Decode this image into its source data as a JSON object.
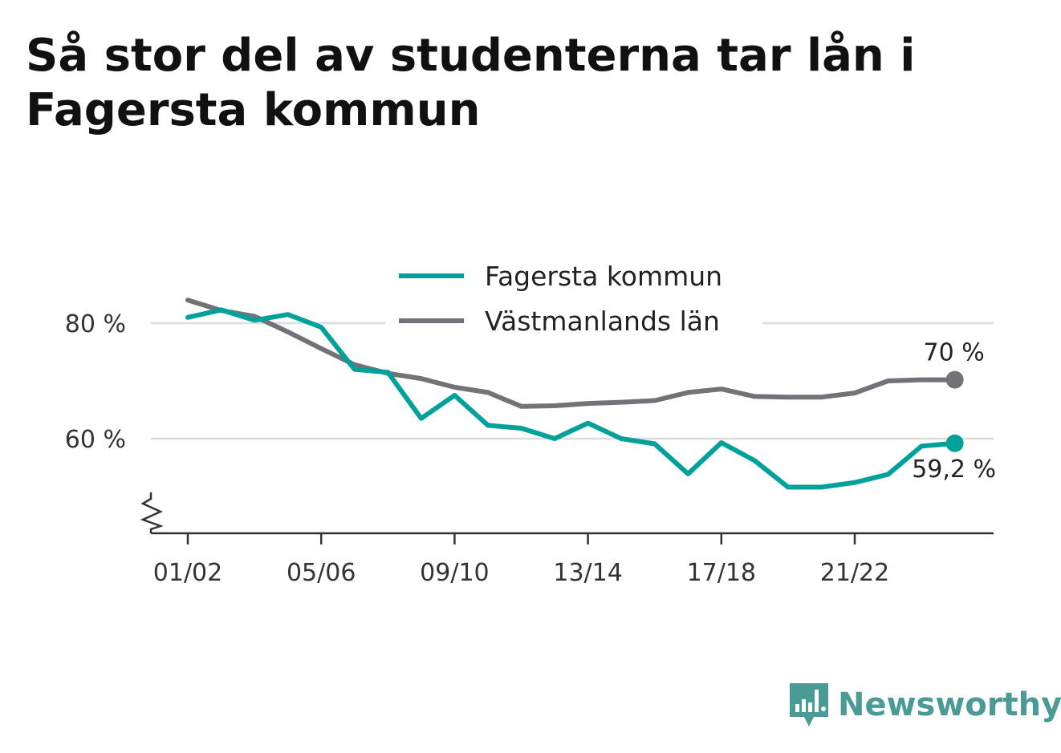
{
  "title": "Så stor del av studenterna tar lån i Fagersta kommun",
  "brand": {
    "name": "Newsworthy",
    "color": "#3f9b97"
  },
  "chart_data": {
    "type": "line",
    "x": [
      "01/02",
      "02/03",
      "03/04",
      "04/05",
      "05/06",
      "06/07",
      "07/08",
      "08/09",
      "09/10",
      "10/11",
      "11/12",
      "12/13",
      "13/14",
      "14/15",
      "15/16",
      "16/17",
      "17/18",
      "18/19",
      "19/20",
      "20/21",
      "21/22",
      "22/23",
      "23/24",
      "24/25"
    ],
    "x_tick_labels": [
      "01/02",
      "05/06",
      "09/10",
      "13/14",
      "17/18",
      "21/22"
    ],
    "y_tick_labels": [
      "60 %",
      "80 %"
    ],
    "ylim": [
      43.8,
      89.1
    ],
    "y_ticks": [
      60,
      80
    ],
    "grid": true,
    "legend_position": "top-center",
    "series": [
      {
        "name": "Fagersta kommun",
        "color": "#00a19a",
        "values": [
          81,
          82.3,
          80.5,
          81.5,
          79.3,
          72,
          71.5,
          63.5,
          67.5,
          62.3,
          61.8,
          60,
          62.7,
          60,
          59.1,
          53.9,
          59.3,
          56.2,
          51.6,
          51.6,
          52.4,
          53.8,
          58.7,
          59.2
        ],
        "end_label": "59,2 %"
      },
      {
        "name": "Västmanlands län",
        "color": "#727279",
        "values": [
          84,
          82.2,
          81.2,
          78.5,
          75.6,
          72.8,
          71.3,
          70.4,
          68.9,
          68,
          65.6,
          65.7,
          66.1,
          66.3,
          66.6,
          68,
          68.6,
          67.3,
          67.2,
          67.2,
          67.9,
          70,
          70.2,
          70.2
        ],
        "end_label": "70 %"
      }
    ]
  }
}
